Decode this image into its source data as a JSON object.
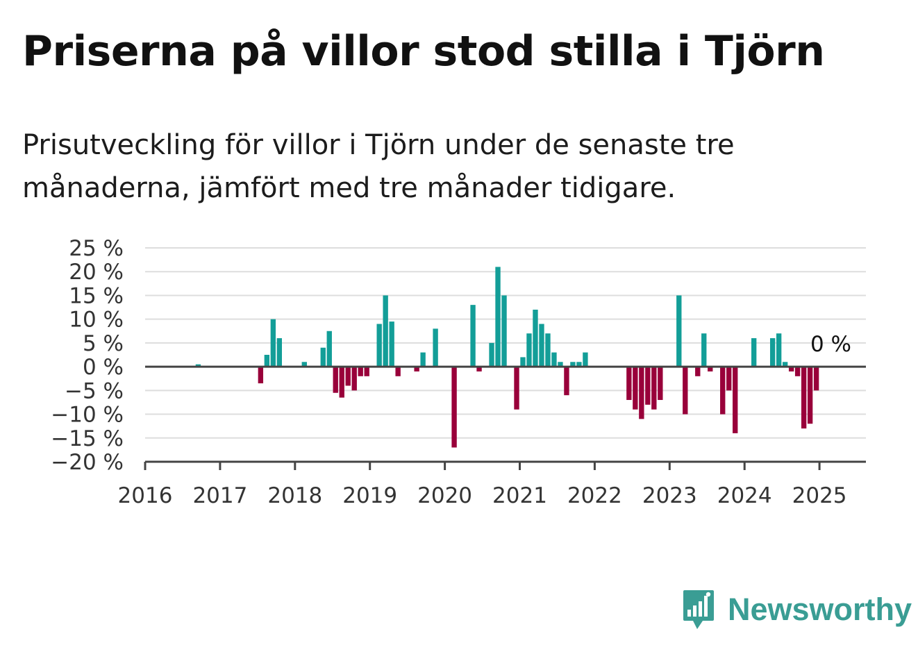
{
  "title": "Priserna på villor stod stilla i Tjörn",
  "subtitle": "Prisutveckling för villor i Tjörn under de senaste tre månaderna, jämfört med tre månader tidigare.",
  "brand": {
    "name": "Newsworthy",
    "color": "#3a9d94"
  },
  "colors": {
    "positive": "#139e98",
    "negative": "#99003a",
    "grid": "#dddddd",
    "axis": "#444444"
  },
  "chart_data": {
    "type": "bar",
    "title": "Priserna på villor stod stilla i Tjörn",
    "subtitle": "Prisutveckling för villor i Tjörn under de senaste tre månaderna, jämfört med tre månader tidigare.",
    "ylim": [
      -20,
      25
    ],
    "xlim": [
      2016.0,
      2025.62
    ],
    "y_ticks": [
      25,
      20,
      15,
      10,
      5,
      0,
      -5,
      -10,
      -15,
      -20
    ],
    "y_tick_labels": [
      "25 %",
      "20 %",
      "15 %",
      "10 %",
      "5 %",
      "0 %",
      "−5 %",
      "−10 %",
      "−15 %",
      "−20 %"
    ],
    "x_ticks": [
      2016,
      2017,
      2018,
      2019,
      2020,
      2021,
      2022,
      2023,
      2024,
      2025
    ],
    "x_tick_labels": [
      "2016",
      "2017",
      "2018",
      "2019",
      "2020",
      "2021",
      "2022",
      "2023",
      "2024",
      "2025"
    ],
    "grid": true,
    "last_value_label": "0 %",
    "x": [
      "2016-09",
      "2017-07",
      "2017-08",
      "2017-09",
      "2017-10",
      "2018-02",
      "2018-05",
      "2018-06",
      "2018-07",
      "2018-08",
      "2018-09",
      "2018-10",
      "2018-11",
      "2018-12",
      "2019-02",
      "2019-03",
      "2019-04",
      "2019-05",
      "2019-08",
      "2019-09",
      "2019-11",
      "2020-02",
      "2020-05",
      "2020-06",
      "2020-08",
      "2020-09",
      "2020-10",
      "2020-12",
      "2021-01",
      "2021-02",
      "2021-03",
      "2021-04",
      "2021-05",
      "2021-06",
      "2021-07",
      "2021-08",
      "2021-09",
      "2021-10",
      "2021-11",
      "2022-06",
      "2022-07",
      "2022-08",
      "2022-09",
      "2022-10",
      "2022-11",
      "2023-02",
      "2023-03",
      "2023-05",
      "2023-06",
      "2023-07",
      "2023-09",
      "2023-10",
      "2023-11",
      "2024-02",
      "2024-05",
      "2024-06",
      "2024-07",
      "2024-08",
      "2024-09",
      "2024-10",
      "2024-11",
      "2024-12",
      "2025-05"
    ],
    "values": [
      0.5,
      -3.5,
      2.5,
      10,
      6,
      1,
      4,
      7.5,
      -5.5,
      -6.5,
      -4,
      -5,
      -2,
      -2,
      9,
      15,
      9.5,
      -2,
      -1,
      3,
      8,
      -17,
      13,
      -1,
      5,
      21,
      15,
      -9,
      2,
      7,
      12,
      9,
      7,
      3,
      1,
      -6,
      1,
      1,
      3,
      -7,
      -9,
      -11,
      -8,
      -9,
      -7,
      15,
      -10,
      -2,
      7,
      -1,
      -10,
      -5,
      -14,
      6,
      6,
      7,
      1,
      -1,
      -2,
      -13,
      -12,
      -5,
      0
    ]
  }
}
